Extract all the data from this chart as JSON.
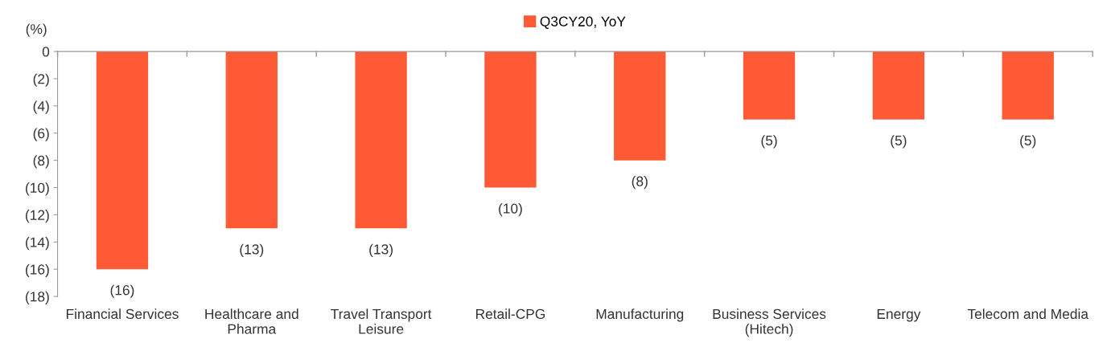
{
  "chart_data": {
    "type": "bar",
    "ylabel": "(%)",
    "categories": [
      "Financial Services",
      "Healthcare and Pharma",
      "Travel Transport Leisure",
      "Retail-CPG",
      "Manufacturing",
      "Business Services (Hitech)",
      "Energy",
      "Telecom and Media"
    ],
    "series": [
      {
        "name": "Q3CY20, YoY",
        "color": "#ff5a36",
        "values": [
          -16,
          -13,
          -13,
          -10,
          -8,
          -5,
          -5,
          -5
        ],
        "value_labels": [
          "(16)",
          "(13)",
          "(13)",
          "(10)",
          "(8)",
          "(5)",
          "(5)",
          "(5)"
        ]
      }
    ],
    "ylim": [
      -18,
      0
    ],
    "yticks": [
      {
        "value": -18,
        "label": "(18)"
      },
      {
        "value": -16,
        "label": "(16)"
      },
      {
        "value": -14,
        "label": "(14)"
      },
      {
        "value": -12,
        "label": "(12)"
      },
      {
        "value": -10,
        "label": "(10)"
      },
      {
        "value": -8,
        "label": "(8)"
      },
      {
        "value": -6,
        "label": "(6)"
      },
      {
        "value": -4,
        "label": "(4)"
      },
      {
        "value": -2,
        "label": "(2)"
      },
      0
    ],
    "grid": false,
    "legend": "top"
  }
}
